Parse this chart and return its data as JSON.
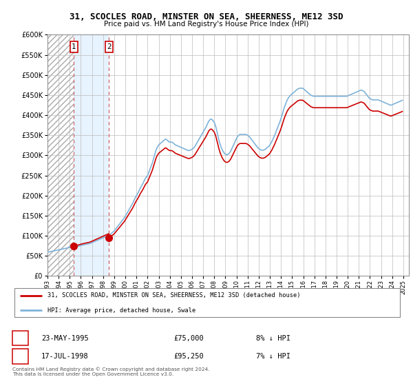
{
  "title": "31, SCOCLES ROAD, MINSTER ON SEA, SHEERNESS, ME12 3SD",
  "subtitle": "Price paid vs. HM Land Registry's House Price Index (HPI)",
  "legend_line1": "31, SCOCLES ROAD, MINSTER ON SEA, SHEERNESS, ME12 3SD (detached house)",
  "legend_line2": "HPI: Average price, detached house, Swale",
  "transaction1_date": "23-MAY-1995",
  "transaction1_price": "£75,000",
  "transaction1_hpi": "8% ↓ HPI",
  "transaction2_date": "17-JUL-1998",
  "transaction2_price": "£95,250",
  "transaction2_hpi": "7% ↓ HPI",
  "footer": "Contains HM Land Registry data © Crown copyright and database right 2024.\nThis data is licensed under the Open Government Licence v3.0.",
  "transaction1_year": 1995.38,
  "transaction2_year": 1998.54,
  "price_color": "#cc0000",
  "hpi_color": "#7fb3d9",
  "ylim": [
    0,
    600000
  ],
  "xlim_start": 1993,
  "xlim_end": 2025.5,
  "yticks": [
    0,
    50000,
    100000,
    150000,
    200000,
    250000,
    300000,
    350000,
    400000,
    450000,
    500000,
    550000,
    600000
  ],
  "xticks": [
    1993,
    1994,
    1995,
    1996,
    1997,
    1998,
    1999,
    2000,
    2001,
    2002,
    2003,
    2004,
    2005,
    2006,
    2007,
    2008,
    2009,
    2010,
    2011,
    2012,
    2013,
    2014,
    2015,
    2016,
    2017,
    2018,
    2019,
    2020,
    2021,
    2022,
    2023,
    2024,
    2025
  ],
  "hpi_data_x": [
    1993.0,
    1993.083,
    1993.167,
    1993.25,
    1993.333,
    1993.417,
    1993.5,
    1993.583,
    1993.667,
    1993.75,
    1993.833,
    1993.917,
    1994.0,
    1994.083,
    1994.167,
    1994.25,
    1994.333,
    1994.417,
    1994.5,
    1994.583,
    1994.667,
    1994.75,
    1994.833,
    1994.917,
    1995.0,
    1995.083,
    1995.167,
    1995.25,
    1995.333,
    1995.417,
    1995.5,
    1995.583,
    1995.667,
    1995.75,
    1995.833,
    1995.917,
    1996.0,
    1996.083,
    1996.167,
    1996.25,
    1996.333,
    1996.417,
    1996.5,
    1996.583,
    1996.667,
    1996.75,
    1996.833,
    1996.917,
    1997.0,
    1997.083,
    1997.167,
    1997.25,
    1997.333,
    1997.417,
    1997.5,
    1997.583,
    1997.667,
    1997.75,
    1997.833,
    1997.917,
    1998.0,
    1998.083,
    1998.167,
    1998.25,
    1998.333,
    1998.417,
    1998.5,
    1998.583,
    1998.667,
    1998.75,
    1998.833,
    1998.917,
    1999.0,
    1999.083,
    1999.167,
    1999.25,
    1999.333,
    1999.417,
    1999.5,
    1999.583,
    1999.667,
    1999.75,
    1999.833,
    1999.917,
    2000.0,
    2000.083,
    2000.167,
    2000.25,
    2000.333,
    2000.417,
    2000.5,
    2000.583,
    2000.667,
    2000.75,
    2000.833,
    2000.917,
    2001.0,
    2001.083,
    2001.167,
    2001.25,
    2001.333,
    2001.417,
    2001.5,
    2001.583,
    2001.667,
    2001.75,
    2001.833,
    2001.917,
    2002.0,
    2002.083,
    2002.167,
    2002.25,
    2002.333,
    2002.417,
    2002.5,
    2002.583,
    2002.667,
    2002.75,
    2002.833,
    2002.917,
    2003.0,
    2003.083,
    2003.167,
    2003.25,
    2003.333,
    2003.417,
    2003.5,
    2003.583,
    2003.667,
    2003.75,
    2003.833,
    2003.917,
    2004.0,
    2004.083,
    2004.167,
    2004.25,
    2004.333,
    2004.417,
    2004.5,
    2004.583,
    2004.667,
    2004.75,
    2004.833,
    2004.917,
    2005.0,
    2005.083,
    2005.167,
    2005.25,
    2005.333,
    2005.417,
    2005.5,
    2005.583,
    2005.667,
    2005.75,
    2005.833,
    2005.917,
    2006.0,
    2006.083,
    2006.167,
    2006.25,
    2006.333,
    2006.417,
    2006.5,
    2006.583,
    2006.667,
    2006.75,
    2006.833,
    2006.917,
    2007.0,
    2007.083,
    2007.167,
    2007.25,
    2007.333,
    2007.417,
    2007.5,
    2007.583,
    2007.667,
    2007.75,
    2007.833,
    2007.917,
    2008.0,
    2008.083,
    2008.167,
    2008.25,
    2008.333,
    2008.417,
    2008.5,
    2008.583,
    2008.667,
    2008.75,
    2008.833,
    2008.917,
    2009.0,
    2009.083,
    2009.167,
    2009.25,
    2009.333,
    2009.417,
    2009.5,
    2009.583,
    2009.667,
    2009.75,
    2009.833,
    2009.917,
    2010.0,
    2010.083,
    2010.167,
    2010.25,
    2010.333,
    2010.417,
    2010.5,
    2010.583,
    2010.667,
    2010.75,
    2010.833,
    2010.917,
    2011.0,
    2011.083,
    2011.167,
    2011.25,
    2011.333,
    2011.417,
    2011.5,
    2011.583,
    2011.667,
    2011.75,
    2011.833,
    2011.917,
    2012.0,
    2012.083,
    2012.167,
    2012.25,
    2012.333,
    2012.417,
    2012.5,
    2012.583,
    2012.667,
    2012.75,
    2012.833,
    2012.917,
    2013.0,
    2013.083,
    2013.167,
    2013.25,
    2013.333,
    2013.417,
    2013.5,
    2013.583,
    2013.667,
    2013.75,
    2013.833,
    2013.917,
    2014.0,
    2014.083,
    2014.167,
    2014.25,
    2014.333,
    2014.417,
    2014.5,
    2014.583,
    2014.667,
    2014.75,
    2014.833,
    2014.917,
    2015.0,
    2015.083,
    2015.167,
    2015.25,
    2015.333,
    2015.417,
    2015.5,
    2015.583,
    2015.667,
    2015.75,
    2015.833,
    2015.917,
    2016.0,
    2016.083,
    2016.167,
    2016.25,
    2016.333,
    2016.417,
    2016.5,
    2016.583,
    2016.667,
    2016.75,
    2016.833,
    2016.917,
    2017.0,
    2017.083,
    2017.167,
    2017.25,
    2017.333,
    2017.417,
    2017.5,
    2017.583,
    2017.667,
    2017.75,
    2017.833,
    2017.917,
    2018.0,
    2018.083,
    2018.167,
    2018.25,
    2018.333,
    2018.417,
    2018.5,
    2018.583,
    2018.667,
    2018.75,
    2018.833,
    2018.917,
    2019.0,
    2019.083,
    2019.167,
    2019.25,
    2019.333,
    2019.417,
    2019.5,
    2019.583,
    2019.667,
    2019.75,
    2019.833,
    2019.917,
    2020.0,
    2020.083,
    2020.167,
    2020.25,
    2020.333,
    2020.417,
    2020.5,
    2020.583,
    2020.667,
    2020.75,
    2020.833,
    2020.917,
    2021.0,
    2021.083,
    2021.167,
    2021.25,
    2021.333,
    2021.417,
    2021.5,
    2021.583,
    2021.667,
    2021.75,
    2021.833,
    2021.917,
    2022.0,
    2022.083,
    2022.167,
    2022.25,
    2022.333,
    2022.417,
    2022.5,
    2022.583,
    2022.667,
    2022.75,
    2022.833,
    2022.917,
    2023.0,
    2023.083,
    2023.167,
    2023.25,
    2023.333,
    2023.417,
    2023.5,
    2023.583,
    2023.667,
    2023.75,
    2023.833,
    2023.917,
    2024.0,
    2024.083,
    2024.167,
    2024.25,
    2024.333,
    2024.417,
    2024.5,
    2024.583,
    2024.667,
    2024.75,
    2024.833,
    2024.917
  ],
  "hpi_data_y": [
    59000,
    59500,
    60000,
    60500,
    61000,
    61500,
    62000,
    62500,
    63000,
    63500,
    64000,
    64500,
    65000,
    65500,
    66000,
    66500,
    67000,
    67500,
    68000,
    68500,
    69000,
    69500,
    70000,
    70500,
    71000,
    71500,
    72000,
    72000,
    72000,
    72000,
    72500,
    73000,
    73500,
    74000,
    74500,
    75000,
    76000,
    76500,
    77000,
    77500,
    78000,
    78500,
    79000,
    79500,
    80000,
    80500,
    81000,
    82000,
    83000,
    84000,
    85000,
    86000,
    87000,
    88000,
    89000,
    90000,
    91000,
    92000,
    93000,
    94000,
    95000,
    96000,
    97000,
    98000,
    99000,
    100000,
    101000,
    102500,
    104000,
    106000,
    108000,
    110000,
    112000,
    115000,
    118000,
    121000,
    124000,
    127000,
    130000,
    133000,
    136000,
    139000,
    142000,
    145000,
    149000,
    153000,
    157000,
    161000,
    165000,
    169000,
    173000,
    177000,
    181000,
    186000,
    191000,
    196000,
    200000,
    204000,
    208000,
    213000,
    218000,
    222000,
    226000,
    230000,
    235000,
    240000,
    244000,
    247000,
    250000,
    256000,
    262000,
    268000,
    274000,
    280000,
    288000,
    296000,
    304000,
    312000,
    318000,
    322000,
    326000,
    328000,
    330000,
    332000,
    334000,
    336000,
    338000,
    340000,
    340000,
    338000,
    336000,
    334000,
    333000,
    333000,
    333000,
    332000,
    330000,
    328000,
    326000,
    325000,
    324000,
    323000,
    322000,
    321000,
    320000,
    319000,
    318000,
    317000,
    316000,
    315000,
    314000,
    313000,
    312000,
    312000,
    313000,
    314000,
    315000,
    317000,
    319000,
    322000,
    326000,
    330000,
    334000,
    338000,
    342000,
    346000,
    350000,
    354000,
    358000,
    362000,
    366000,
    370000,
    375000,
    380000,
    385000,
    388000,
    390000,
    390000,
    388000,
    385000,
    382000,
    376000,
    368000,
    358000,
    348000,
    338000,
    330000,
    323000,
    317000,
    312000,
    308000,
    305000,
    303000,
    302000,
    302000,
    303000,
    305000,
    308000,
    312000,
    317000,
    322000,
    327000,
    332000,
    337000,
    342000,
    346000,
    349000,
    351000,
    352000,
    352000,
    352000,
    352000,
    352000,
    352000,
    352000,
    351000,
    350000,
    348000,
    346000,
    343000,
    340000,
    337000,
    334000,
    331000,
    328000,
    325000,
    322000,
    319000,
    317000,
    315000,
    314000,
    313000,
    313000,
    313000,
    314000,
    315000,
    317000,
    319000,
    321000,
    323000,
    326000,
    330000,
    334000,
    339000,
    344000,
    349000,
    355000,
    361000,
    367000,
    373000,
    379000,
    385000,
    392000,
    399000,
    407000,
    415000,
    422000,
    428000,
    434000,
    439000,
    443000,
    446000,
    449000,
    451000,
    453000,
    455000,
    457000,
    459000,
    461000,
    463000,
    465000,
    466000,
    467000,
    467000,
    467000,
    467000,
    466000,
    464000,
    462000,
    460000,
    458000,
    456000,
    454000,
    452000,
    450000,
    449000,
    448000,
    447000,
    447000,
    447000,
    447000,
    447000,
    447000,
    447000,
    447000,
    447000,
    447000,
    447000,
    447000,
    447000,
    447000,
    447000,
    447000,
    447000,
    447000,
    447000,
    447000,
    447000,
    447000,
    447000,
    447000,
    447000,
    447000,
    447000,
    447000,
    447000,
    447000,
    447000,
    447000,
    447000,
    447000,
    447000,
    447000,
    447000,
    448000,
    449000,
    450000,
    451000,
    452000,
    453000,
    454000,
    455000,
    456000,
    457000,
    458000,
    459000,
    460000,
    461000,
    462000,
    462000,
    461000,
    460000,
    458000,
    455000,
    452000,
    449000,
    446000,
    443000,
    441000,
    440000,
    439000,
    438000,
    438000,
    438000,
    438000,
    438000,
    438000,
    438000,
    437000,
    436000,
    435000,
    434000,
    433000,
    432000,
    431000,
    430000,
    429000,
    428000,
    427000,
    426000,
    425000,
    425000,
    426000,
    427000,
    428000,
    429000,
    430000,
    431000,
    432000,
    433000,
    434000,
    435000,
    436000,
    437000
  ],
  "price_data_x": [
    1995.38,
    1998.54
  ],
  "price_data_y": [
    75000,
    95250
  ]
}
